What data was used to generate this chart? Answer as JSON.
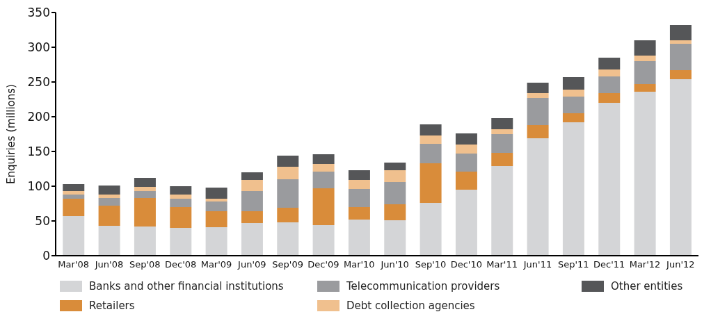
{
  "chart_data": {
    "type": "bar",
    "stacked": true,
    "ylabel": "Enquiries (millions)",
    "categories": [
      "Mar'08",
      "Jun'08",
      "Sep'08",
      "Dec'08",
      "Mar'09",
      "Jun'09",
      "Sep'09",
      "Dec'09",
      "Mar'10",
      "Jun'10",
      "Sep'10",
      "Dec'10",
      "Mar'11",
      "Jun'11",
      "Sep'11",
      "Dec'11",
      "Mar'12",
      "Jun'12"
    ],
    "series": [
      {
        "name": "Banks and other financial institutions",
        "color": "#d4d5d7",
        "values": [
          57,
          43,
          42,
          40,
          41,
          47,
          48,
          44,
          52,
          51,
          76,
          95,
          129,
          169,
          192,
          220,
          236,
          254
        ]
      },
      {
        "name": "Retailers",
        "color": "#d98c3a",
        "values": [
          25,
          29,
          41,
          30,
          23,
          17,
          21,
          53,
          18,
          23,
          57,
          26,
          19,
          19,
          13,
          14,
          11,
          13
        ]
      },
      {
        "name": "Telecommunication providers",
        "color": "#9a9b9e",
        "values": [
          6,
          11,
          10,
          12,
          14,
          29,
          41,
          24,
          26,
          32,
          28,
          26,
          27,
          39,
          24,
          24,
          33,
          38
        ]
      },
      {
        "name": "Debt collection agencies",
        "color": "#f0c08e",
        "values": [
          5,
          5,
          6,
          6,
          4,
          16,
          18,
          11,
          13,
          17,
          12,
          13,
          7,
          7,
          10,
          10,
          8,
          5
        ]
      },
      {
        "name": "Other entities",
        "color": "#555658",
        "values": [
          10,
          13,
          13,
          12,
          16,
          11,
          16,
          14,
          14,
          11,
          16,
          16,
          16,
          15,
          18,
          17,
          22,
          22
        ]
      }
    ],
    "ylim": [
      0,
      350
    ],
    "yticks": [
      0,
      50,
      100,
      150,
      200,
      250,
      300,
      350
    ],
    "grid": false,
    "legend": "bottom"
  }
}
